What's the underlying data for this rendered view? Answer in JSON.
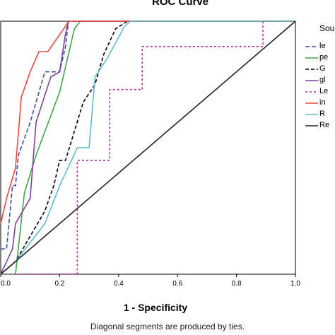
{
  "chart_data": {
    "type": "line",
    "title": "ROC Curve",
    "xlabel": "1 - Specificity",
    "ylabel": "",
    "footnote": "Diagonal segments are produced by ties.",
    "legend_title": "Sou",
    "legend_position": "right",
    "xlim": [
      0,
      1
    ],
    "ylim": [
      0,
      1
    ],
    "x_ticks": [
      "0.0",
      "0.2",
      "0.4",
      "0.6",
      "0.8",
      "1.0"
    ],
    "grid": false,
    "series": [
      {
        "name": "le",
        "color": "#3b4fa0",
        "dash": "6,3",
        "points": [
          [
            0,
            0.1
          ],
          [
            0.02,
            0.1
          ],
          [
            0.04,
            0.35
          ],
          [
            0.05,
            0.35
          ],
          [
            0.06,
            0.47
          ],
          [
            0.1,
            0.6
          ],
          [
            0.15,
            0.8
          ],
          [
            0.2,
            0.8
          ],
          [
            0.22,
            0.9
          ],
          [
            0.23,
            1.0
          ],
          [
            1,
            1
          ]
        ]
      },
      {
        "name": "pe",
        "color": "#3fa64a",
        "dash": "",
        "points": [
          [
            0,
            0
          ],
          [
            0.05,
            0
          ],
          [
            0.08,
            0.32
          ],
          [
            0.12,
            0.47
          ],
          [
            0.2,
            0.72
          ],
          [
            0.25,
            0.97
          ],
          [
            0.27,
            1.0
          ],
          [
            1,
            1
          ]
        ]
      },
      {
        "name": "G",
        "color": "#000000",
        "dash": "5,3",
        "points": [
          [
            0,
            0
          ],
          [
            0.05,
            0.05
          ],
          [
            0.1,
            0.15
          ],
          [
            0.15,
            0.25
          ],
          [
            0.18,
            0.35
          ],
          [
            0.2,
            0.45
          ],
          [
            0.22,
            0.45
          ],
          [
            0.28,
            0.68
          ],
          [
            0.32,
            0.75
          ],
          [
            0.35,
            0.87
          ],
          [
            0.39,
            0.97
          ],
          [
            0.43,
            1.0
          ],
          [
            1,
            1
          ]
        ]
      },
      {
        "name": "gl",
        "color": "#7e3f98",
        "dash": "",
        "points": [
          [
            0,
            0
          ],
          [
            0.04,
            0.1
          ],
          [
            0.05,
            0.2
          ],
          [
            0.1,
            0.3
          ],
          [
            0.12,
            0.6
          ],
          [
            0.17,
            0.78
          ],
          [
            0.2,
            0.8
          ],
          [
            0.22,
            0.95
          ],
          [
            0.23,
            1.0
          ],
          [
            1,
            1
          ]
        ]
      },
      {
        "name": "Le",
        "color": "#b22c8f",
        "dash": "3,3",
        "points": [
          [
            0,
            0
          ],
          [
            0.26,
            0
          ],
          [
            0.26,
            0.45
          ],
          [
            0.37,
            0.45
          ],
          [
            0.37,
            0.73
          ],
          [
            0.48,
            0.73
          ],
          [
            0.48,
            0.9
          ],
          [
            0.89,
            0.9
          ],
          [
            0.89,
            1.0
          ],
          [
            1,
            1
          ]
        ]
      },
      {
        "name": "in",
        "color": "#e64a3c",
        "dash": "",
        "points": [
          [
            0,
            0.2
          ],
          [
            0.02,
            0.3
          ],
          [
            0.05,
            0.42
          ],
          [
            0.07,
            0.7
          ],
          [
            0.1,
            0.8
          ],
          [
            0.13,
            0.88
          ],
          [
            0.16,
            0.88
          ],
          [
            0.19,
            0.93
          ],
          [
            0.22,
            0.98
          ],
          [
            0.23,
            1.0
          ],
          [
            1,
            1
          ]
        ]
      },
      {
        "name": "R",
        "color": "#5fbcc9",
        "dash": "",
        "points": [
          [
            0,
            0
          ],
          [
            0.05,
            0.05
          ],
          [
            0.15,
            0.2
          ],
          [
            0.2,
            0.35
          ],
          [
            0.26,
            0.5
          ],
          [
            0.3,
            0.5
          ],
          [
            0.32,
            0.78
          ],
          [
            0.36,
            0.85
          ],
          [
            0.42,
            0.98
          ],
          [
            0.44,
            1.0
          ],
          [
            1,
            1
          ]
        ]
      },
      {
        "name": "Re",
        "color": "#222222",
        "dash": "",
        "points": [
          [
            0,
            0
          ],
          [
            1,
            1
          ]
        ]
      }
    ]
  }
}
